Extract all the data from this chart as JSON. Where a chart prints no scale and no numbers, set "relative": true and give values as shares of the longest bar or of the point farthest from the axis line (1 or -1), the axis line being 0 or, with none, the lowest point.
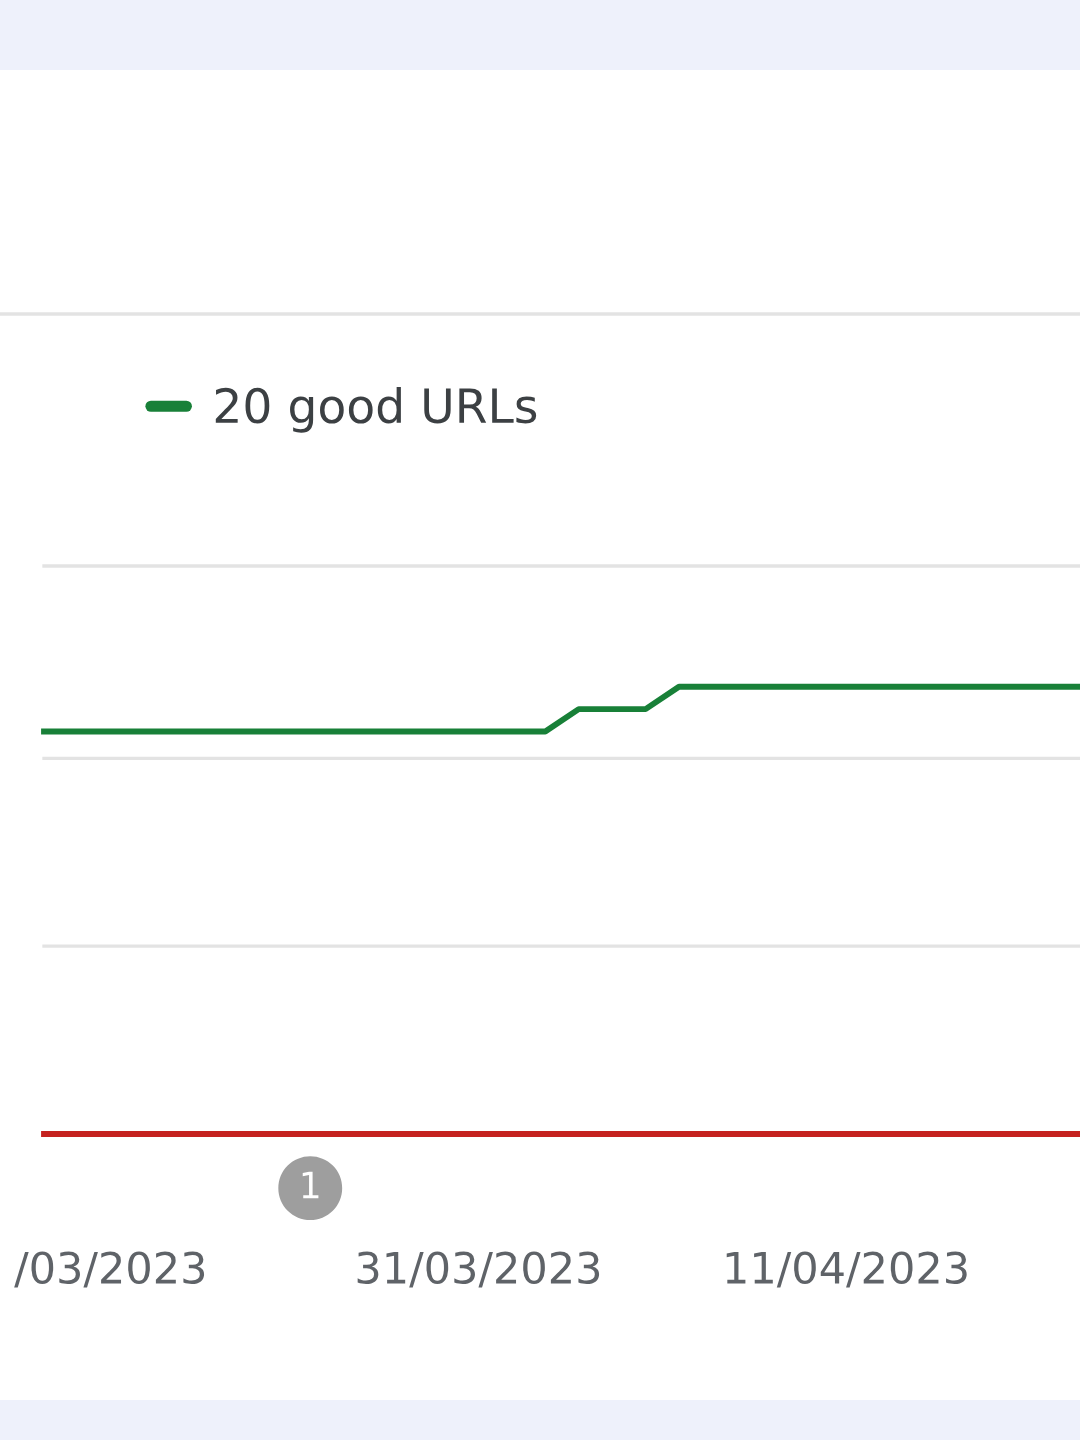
{
  "chart_data": {
    "type": "line",
    "relative": true,
    "x": [
      "2023-03-18",
      "2023-04-18"
    ],
    "xlim": [
      "2023-03-18",
      "2023-04-18"
    ],
    "xticks": [
      {
        "value": "2023-03-20",
        "label": "/03/2023"
      },
      {
        "value": "2023-03-31",
        "label": "31/03/2023"
      },
      {
        "value": "2023-04-11",
        "label": "11/04/2023"
      }
    ],
    "series": [
      {
        "name": "20 good URLs",
        "color": "#188038",
        "x": [
          "2023-03-18",
          "2023-04-02",
          "2023-04-03",
          "2023-04-05",
          "2023-04-06",
          "2023-04-18"
        ],
        "values": [
          0.9,
          0.9,
          0.95,
          0.95,
          1,
          1
        ]
      },
      {
        "color": "#c5221f",
        "values": [
          0,
          0
        ]
      }
    ],
    "ref_lines": [
      {
        "axis": "y",
        "value": 0.42,
        "color": "#e3e3e3"
      },
      {
        "axis": "y",
        "value": 0.84,
        "color": "#e3e3e3"
      },
      {
        "axis": "y",
        "value": 1.27,
        "color": "#e3e3e3"
      }
    ],
    "annotations": [
      "1"
    ],
    "legend": "top left",
    "tick_labels": "x"
  }
}
